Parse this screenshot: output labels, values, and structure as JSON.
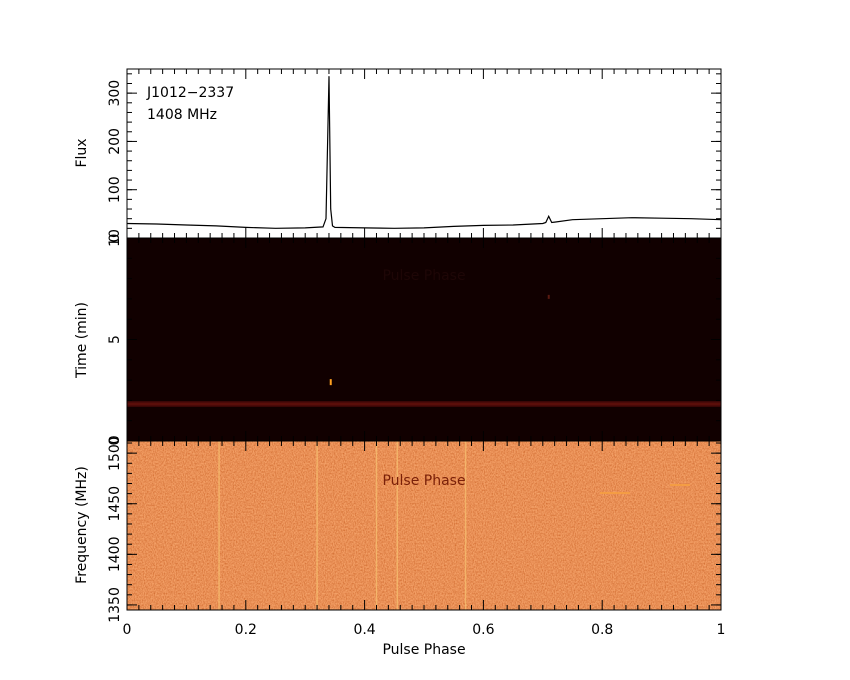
{
  "chart_data": [
    {
      "type": "line",
      "panel": "profile",
      "annotations": [
        "J1012−2337",
        "1408 MHz"
      ],
      "ylabel": "Flux",
      "xlim": [
        0,
        1
      ],
      "ylim": [
        0,
        350
      ],
      "yticks": [
        "0",
        "100",
        "200",
        "300"
      ],
      "series": [
        {
          "x": [
            0,
            0.05,
            0.1,
            0.15,
            0.2,
            0.25,
            0.3,
            0.33,
            0.335,
            0.34,
            0.343,
            0.346,
            0.35,
            0.4,
            0.45,
            0.5,
            0.55,
            0.6,
            0.65,
            0.7,
            0.705,
            0.71,
            0.715,
            0.72,
            0.75,
            0.8,
            0.85,
            0.9,
            0.95,
            1.0
          ],
          "y": [
            30,
            29,
            27,
            25,
            22,
            20,
            21,
            23,
            40,
            335,
            60,
            25,
            22,
            21,
            20,
            21,
            24,
            26,
            27,
            30,
            32,
            45,
            32,
            33,
            38,
            40,
            42,
            41,
            40,
            38
          ]
        }
      ]
    },
    {
      "type": "heatmap",
      "panel": "time-phase",
      "ylabel": "Time (min)",
      "overlay_text": "Pulse Phase",
      "xlim": [
        0,
        1
      ],
      "ylim": [
        0,
        10
      ],
      "yticks": [
        "0",
        "5",
        "10"
      ],
      "features": [
        {
          "kind": "bright-spot",
          "phase": 0.343,
          "time_min": 2.9
        },
        {
          "kind": "faint-spot",
          "phase": 0.71,
          "time_min": 7.1
        },
        {
          "kind": "horizontal-band",
          "time_min": 1.85
        }
      ],
      "colors": {
        "background": "#110000",
        "band": "#4a0808",
        "spot": "#ffa020"
      }
    },
    {
      "type": "heatmap",
      "panel": "frequency-phase",
      "ylabel": "Frequency (MHz)",
      "xlabel": "Pulse Phase",
      "overlay_text": "Pulse Phase",
      "xlim": [
        0,
        1
      ],
      "ylim": [
        1345,
        1512
      ],
      "yticks": [
        "1350",
        "1400",
        "1450",
        "1500"
      ],
      "xticks": [
        "0",
        "0.2",
        "0.4",
        "0.6",
        "0.8",
        "1"
      ],
      "vertical_lines_phase": [
        0.155,
        0.32,
        0.42,
        0.455,
        0.57
      ],
      "colors": {
        "low": "#a02400",
        "high": "#f08030"
      }
    }
  ]
}
